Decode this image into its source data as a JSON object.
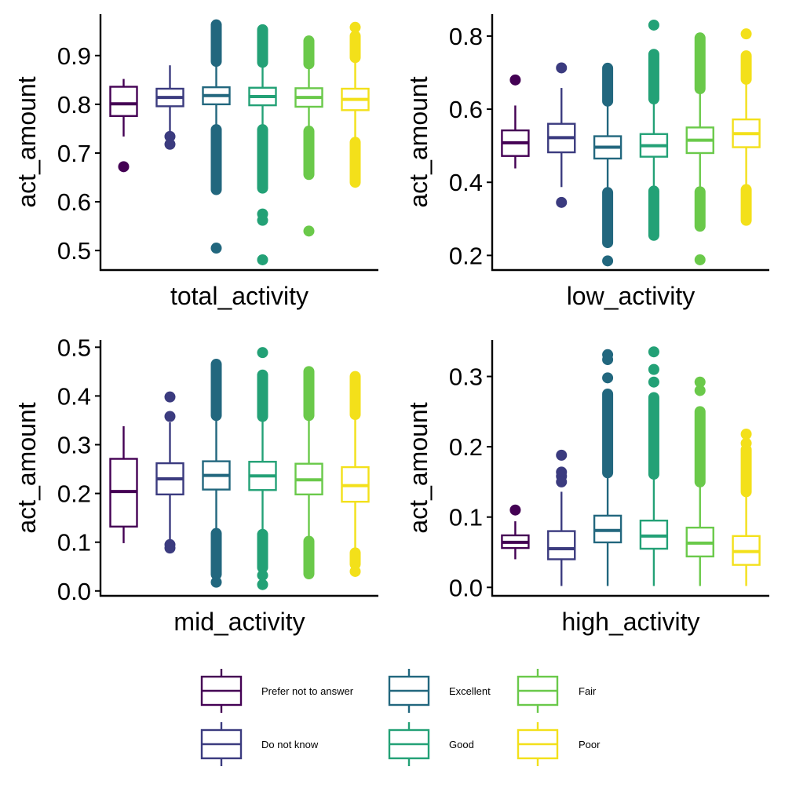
{
  "chart_data": [
    {
      "type": "box",
      "xlabel": "total_activity",
      "ylabel": "act_amount",
      "ylim": [
        0.46,
        0.985
      ],
      "yticks": [
        0.5,
        0.6,
        0.7,
        0.8,
        0.9
      ],
      "ytick_labels": [
        "0.5",
        "0.6",
        "0.7",
        "0.8",
        "0.9"
      ],
      "boxes": [
        {
          "q1": 0.776,
          "median": 0.801,
          "q3": 0.836,
          "whisker_low": 0.734,
          "whisker_high": 0.852,
          "outliers": [
            0.672
          ]
        },
        {
          "q1": 0.796,
          "median": 0.814,
          "q3": 0.832,
          "whisker_low": 0.743,
          "whisker_high": 0.88,
          "outliers": [
            0.734,
            0.718
          ]
        },
        {
          "q1": 0.8,
          "median": 0.818,
          "q3": 0.835,
          "whisker_low": 0.752,
          "whisker_high": 0.884,
          "outliers": [
            0.505
          ],
          "outlier_bands": [
            [
              0.888,
              0.963
            ],
            [
              0.625,
              0.748
            ]
          ]
        },
        {
          "q1": 0.798,
          "median": 0.816,
          "q3": 0.834,
          "whisker_low": 0.752,
          "whisker_high": 0.882,
          "outliers": [
            0.575,
            0.562,
            0.481
          ],
          "outlier_bands": [
            [
              0.886,
              0.953
            ],
            [
              0.628,
              0.748
            ]
          ]
        },
        {
          "q1": 0.795,
          "median": 0.814,
          "q3": 0.833,
          "whisker_low": 0.749,
          "whisker_high": 0.879,
          "outliers": [
            0.54
          ],
          "outlier_bands": [
            [
              0.883,
              0.93
            ],
            [
              0.656,
              0.745
            ]
          ]
        },
        {
          "q1": 0.788,
          "median": 0.81,
          "q3": 0.832,
          "whisker_low": 0.726,
          "whisker_high": 0.892,
          "outliers": [
            0.958
          ],
          "outlier_bands": [
            [
              0.896,
              0.94
            ],
            [
              0.64,
              0.722
            ]
          ]
        }
      ]
    },
    {
      "type": "box",
      "xlabel": "low_activity",
      "ylabel": "act_amount",
      "ylim": [
        0.16,
        0.86
      ],
      "yticks": [
        0.2,
        0.4,
        0.6,
        0.8
      ],
      "ytick_labels": [
        "0.2",
        "0.4",
        "0.6",
        "0.8"
      ],
      "boxes": [
        {
          "q1": 0.472,
          "median": 0.508,
          "q3": 0.542,
          "whisker_low": 0.438,
          "whisker_high": 0.61,
          "outliers": [
            0.68
          ]
        },
        {
          "q1": 0.482,
          "median": 0.522,
          "q3": 0.56,
          "whisker_low": 0.387,
          "whisker_high": 0.658,
          "outliers": [
            0.713,
            0.345
          ]
        },
        {
          "q1": 0.465,
          "median": 0.496,
          "q3": 0.526,
          "whisker_low": 0.378,
          "whisker_high": 0.616,
          "outliers": [
            0.185
          ],
          "outlier_bands": [
            [
              0.622,
              0.712
            ],
            [
              0.235,
              0.372
            ]
          ]
        },
        {
          "q1": 0.47,
          "median": 0.5,
          "q3": 0.532,
          "whisker_low": 0.382,
          "whisker_high": 0.622,
          "outliers": [
            0.83
          ],
          "outlier_bands": [
            [
              0.628,
              0.75
            ],
            [
              0.255,
              0.376
            ]
          ]
        },
        {
          "q1": 0.48,
          "median": 0.515,
          "q3": 0.55,
          "whisker_low": 0.38,
          "whisker_high": 0.65,
          "outliers": [
            0.188
          ],
          "outlier_bands": [
            [
              0.656,
              0.795
            ],
            [
              0.28,
              0.374
            ]
          ]
        },
        {
          "q1": 0.496,
          "median": 0.533,
          "q3": 0.572,
          "whisker_low": 0.386,
          "whisker_high": 0.676,
          "outliers": [
            0.806
          ],
          "outlier_bands": [
            [
              0.682,
              0.746
            ],
            [
              0.296,
              0.38
            ]
          ]
        }
      ]
    },
    {
      "type": "box",
      "xlabel": "mid_activity",
      "ylabel": "act_amount",
      "ylim": [
        -0.01,
        0.515
      ],
      "yticks": [
        0.0,
        0.1,
        0.2,
        0.3,
        0.4,
        0.5
      ],
      "ytick_labels": [
        "0.0",
        "0.1",
        "0.2",
        "0.3",
        "0.4",
        "0.5"
      ],
      "boxes": [
        {
          "q1": 0.132,
          "median": 0.204,
          "q3": 0.271,
          "whisker_low": 0.098,
          "whisker_high": 0.338,
          "outliers": []
        },
        {
          "q1": 0.198,
          "median": 0.23,
          "q3": 0.262,
          "whisker_low": 0.102,
          "whisker_high": 0.346,
          "outliers": [
            0.398,
            0.358,
            0.095,
            0.088
          ]
        },
        {
          "q1": 0.208,
          "median": 0.237,
          "q3": 0.266,
          "whisker_low": 0.124,
          "whisker_high": 0.354,
          "outliers": [
            0.018
          ],
          "outlier_bands": [
            [
              0.36,
              0.465
            ],
            [
              0.034,
              0.118
            ]
          ]
        },
        {
          "q1": 0.207,
          "median": 0.236,
          "q3": 0.265,
          "whisker_low": 0.122,
          "whisker_high": 0.352,
          "outliers": [
            0.489,
            0.032,
            0.013
          ],
          "outlier_bands": [
            [
              0.358,
              0.443
            ],
            [
              0.048,
              0.116
            ]
          ]
        },
        {
          "q1": 0.198,
          "median": 0.228,
          "q3": 0.261,
          "whisker_low": 0.108,
          "whisker_high": 0.354,
          "outliers": [],
          "outlier_bands": [
            [
              0.36,
              0.45
            ],
            [
              0.035,
              0.102
            ]
          ]
        },
        {
          "q1": 0.183,
          "median": 0.216,
          "q3": 0.254,
          "whisker_low": 0.082,
          "whisker_high": 0.356,
          "outliers": [
            0.04
          ],
          "outlier_bands": [
            [
              0.362,
              0.44
            ],
            [
              0.055,
              0.078
            ]
          ]
        }
      ]
    },
    {
      "type": "box",
      "xlabel": "high_activity",
      "ylabel": "act_amount",
      "ylim": [
        -0.012,
        0.352
      ],
      "yticks": [
        0.0,
        0.1,
        0.2,
        0.3
      ],
      "ytick_labels": [
        "0.0",
        "0.1",
        "0.2",
        "0.3"
      ],
      "boxes": [
        {
          "q1": 0.056,
          "median": 0.064,
          "q3": 0.074,
          "whisker_low": 0.04,
          "whisker_high": 0.094,
          "outliers": [
            0.11
          ]
        },
        {
          "q1": 0.04,
          "median": 0.055,
          "q3": 0.08,
          "whisker_low": 0.002,
          "whisker_high": 0.136,
          "outliers": [
            0.188,
            0.164,
            0.158,
            0.15
          ]
        },
        {
          "q1": 0.064,
          "median": 0.081,
          "q3": 0.102,
          "whisker_low": 0.002,
          "whisker_high": 0.157,
          "outliers": [
            0.331,
            0.324,
            0.298
          ],
          "outlier_bands": [
            [
              0.163,
              0.275
            ]
          ]
        },
        {
          "q1": 0.055,
          "median": 0.073,
          "q3": 0.095,
          "whisker_low": 0.002,
          "whisker_high": 0.155,
          "outliers": [
            0.335,
            0.31,
            0.292
          ],
          "outlier_bands": [
            [
              0.161,
              0.27
            ]
          ]
        },
        {
          "q1": 0.044,
          "median": 0.063,
          "q3": 0.085,
          "whisker_low": 0.002,
          "whisker_high": 0.144,
          "outliers": [
            0.292,
            0.28
          ],
          "outlier_bands": [
            [
              0.15,
              0.25
            ]
          ]
        },
        {
          "q1": 0.032,
          "median": 0.051,
          "q3": 0.073,
          "whisker_low": 0.002,
          "whisker_high": 0.13,
          "outliers": [
            0.218,
            0.205
          ],
          "outlier_bands": [
            [
              0.136,
              0.196
            ]
          ]
        }
      ]
    }
  ],
  "legend": {
    "placement": "bottom",
    "items": [
      {
        "label": "Prefer not to answer",
        "color": "#440154"
      },
      {
        "label": "Do not know",
        "color": "#3b3b7f"
      },
      {
        "label": "Excellent",
        "color": "#22677e"
      },
      {
        "label": "Good",
        "color": "#23a176"
      },
      {
        "label": "Fair",
        "color": "#6ac94a"
      },
      {
        "label": "Poor",
        "color": "#f3e01a"
      }
    ]
  }
}
